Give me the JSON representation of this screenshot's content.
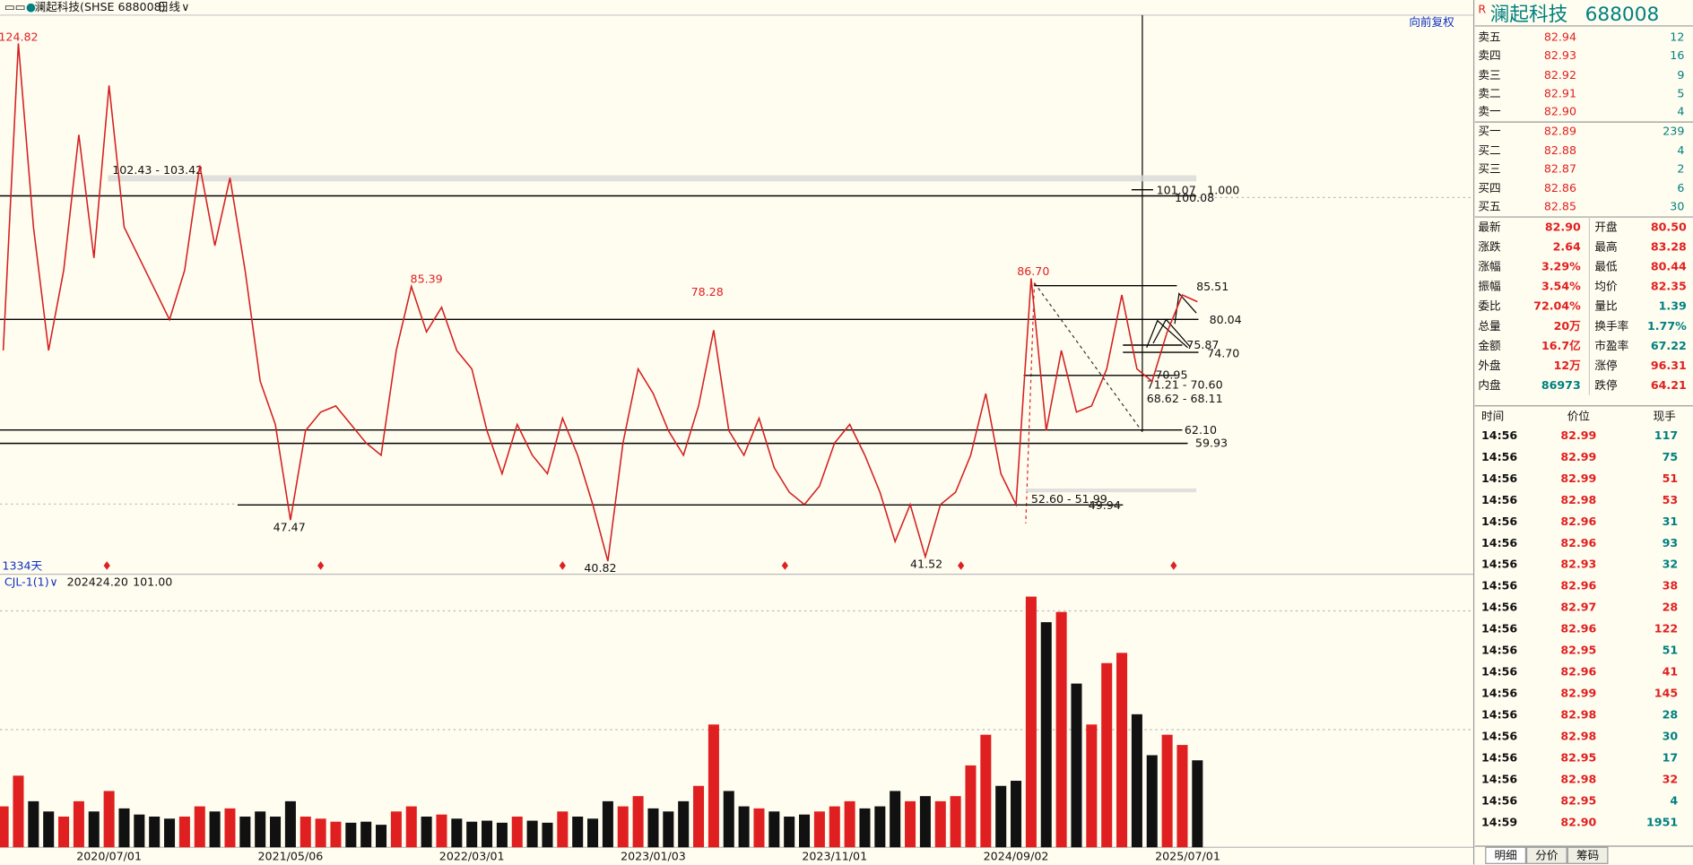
{
  "header": {
    "title": "澜起科技(SHSE 688008)",
    "period": "日线",
    "adjust": "向前复权",
    "days": "1334天"
  },
  "chart_data": [
    {
      "type": "line",
      "color": "#d42020",
      "ylim": [
        38.7,
        129.4
      ],
      "categories": [
        null,
        null,
        null,
        null,
        null,
        null,
        null,
        "2020/07/01",
        null,
        null,
        null,
        null,
        null,
        null,
        null,
        null,
        null,
        null,
        null,
        "2021/05/06",
        null,
        null,
        null,
        null,
        null,
        null,
        null,
        null,
        null,
        null,
        null,
        "2022/03/01",
        null,
        null,
        null,
        null,
        null,
        null,
        null,
        null,
        null,
        null,
        null,
        "2023/01/03",
        null,
        null,
        null,
        null,
        null,
        null,
        null,
        null,
        null,
        null,
        null,
        "2023/11/01",
        null,
        null,
        null,
        null,
        null,
        null,
        null,
        null,
        null,
        null,
        null,
        "2024/09/02",
        null,
        null,
        null,
        null,
        null,
        null,
        null,
        null,
        null,
        null,
        null,
        "2025/07/01"
      ],
      "values": [
        75,
        124.82,
        95,
        75,
        88,
        110,
        90,
        118,
        95,
        90,
        85,
        80,
        88,
        105,
        92,
        103,
        88,
        70,
        63,
        47.47,
        62,
        65,
        66,
        63,
        60,
        58,
        75,
        85.39,
        78,
        82,
        75,
        72,
        62,
        55,
        63,
        58,
        55,
        64,
        58,
        50,
        40.82,
        60,
        72,
        68,
        62,
        58,
        66,
        78.28,
        62,
        58,
        64,
        56,
        52,
        50,
        53,
        60,
        63,
        58,
        52,
        44,
        50,
        41.52,
        50,
        52,
        58,
        68,
        55,
        50,
        86.7,
        62,
        75,
        65,
        66,
        72,
        84,
        72,
        70,
        78,
        84,
        82.9
      ],
      "peaks": [
        124.82,
        85.39,
        78.28,
        {
          "value": 86.7,
          "label": "86.70"
        }
      ],
      "troughs": [
        47.47,
        40.82,
        41.52
      ],
      "zones": [
        {
          "low": 102.43,
          "high": 103.42,
          "label": "102.43 - 103.42"
        },
        {
          "low": 51.99,
          "high": 52.6,
          "label": "52.60 - 51.99"
        },
        {
          "low": 70.6,
          "high": 71.21,
          "label": "71.21 - 70.60"
        },
        {
          "low": 68.11,
          "high": 68.62,
          "label": "68.62 - 68.11"
        }
      ],
      "levels": [
        100.08,
        80.04,
        62.1,
        59.93,
        49.94,
        85.51,
        75.87,
        74.7,
        70.95,
        101.07
      ],
      "level_labels": [
        "100.08",
        "80.04",
        "62.10",
        "59.93",
        "49.94",
        "85.51",
        "75.87",
        "74.70",
        "70.95",
        "101.07"
      ],
      "ratio": {
        "value": 1,
        "label": "1.000"
      }
    },
    {
      "type": "bar",
      "name": "CJL-1(1)",
      "ylim": [
        0,
        250
      ],
      "colors": [
        "#e02020",
        "#111111"
      ],
      "readout": [
        {
          "value": 202424.2,
          "label": "202424.20"
        },
        {
          "value": 101,
          "label": "101.00"
        }
      ],
      "values": [
        40,
        70,
        45,
        35,
        30,
        45,
        35,
        55,
        38,
        32,
        30,
        28,
        30,
        40,
        35,
        38,
        30,
        35,
        30,
        45,
        30,
        28,
        25,
        24,
        25,
        22,
        35,
        40,
        30,
        32,
        28,
        25,
        26,
        24,
        30,
        26,
        24,
        35,
        30,
        28,
        45,
        40,
        50,
        38,
        35,
        45,
        60,
        120,
        55,
        40,
        38,
        35,
        30,
        32,
        35,
        40,
        45,
        38,
        40,
        55,
        45,
        50,
        45,
        50,
        80,
        110,
        60,
        65,
        245,
        220,
        230,
        160,
        120,
        180,
        190,
        130,
        90,
        110,
        100,
        85
      ]
    }
  ],
  "quote": {
    "flag": "R",
    "name": "澜起科技",
    "code": "688008",
    "book": [
      [
        "卖五",
        "82.94",
        "12"
      ],
      [
        "卖四",
        "82.93",
        "16"
      ],
      [
        "卖三",
        "82.92",
        "9"
      ],
      [
        "卖二",
        "82.91",
        "5"
      ],
      [
        "卖一",
        "82.90",
        "4"
      ],
      [
        "买一",
        "82.89",
        "239"
      ],
      [
        "买二",
        "82.88",
        "4"
      ],
      [
        "买三",
        "82.87",
        "2"
      ],
      [
        "买四",
        "82.86",
        "6"
      ],
      [
        "买五",
        "82.85",
        "30"
      ]
    ],
    "stats": [
      [
        "最新",
        "82.90",
        "开盘",
        "80.50"
      ],
      [
        "涨跌",
        "2.64",
        "最高",
        "83.28"
      ],
      [
        "涨幅",
        "3.29%",
        "最低",
        "80.44"
      ],
      [
        "振幅",
        "3.54%",
        "均价",
        "82.35"
      ],
      [
        "委比",
        "72.04%",
        "量比",
        "1.39"
      ],
      [
        "总量",
        "20万",
        "换手率",
        "1.77%"
      ],
      [
        "金额",
        "16.7亿",
        "市盈率",
        "67.22"
      ],
      [
        "外盘",
        "12万",
        "涨停",
        "96.31"
      ],
      [
        "内盘",
        "86973",
        "跌停",
        "64.21"
      ]
    ],
    "trade_head": [
      "时间",
      "价位",
      "现手"
    ],
    "trades": [
      [
        "14:56",
        "82.99",
        "117"
      ],
      [
        "14:56",
        "82.99",
        "75"
      ],
      [
        "14:56",
        "82.99",
        "51"
      ],
      [
        "14:56",
        "82.98",
        "53"
      ],
      [
        "14:56",
        "82.96",
        "31"
      ],
      [
        "14:56",
        "82.96",
        "93"
      ],
      [
        "14:56",
        "82.93",
        "32"
      ],
      [
        "14:56",
        "82.96",
        "38"
      ],
      [
        "14:56",
        "82.97",
        "28"
      ],
      [
        "14:56",
        "82.96",
        "122"
      ],
      [
        "14:56",
        "82.95",
        "51"
      ],
      [
        "14:56",
        "82.96",
        "41"
      ],
      [
        "14:56",
        "82.99",
        "145"
      ],
      [
        "14:56",
        "82.98",
        "28"
      ],
      [
        "14:56",
        "82.98",
        "30"
      ],
      [
        "14:56",
        "82.95",
        "17"
      ],
      [
        "14:56",
        "82.98",
        "32"
      ],
      [
        "14:56",
        "82.95",
        "4"
      ],
      [
        "14:59",
        "82.90",
        "1951"
      ]
    ],
    "trade_colors": [
      "#008080",
      "#008080",
      "#e02020",
      "#e02020",
      "#008080",
      "#008080",
      "#008080",
      "#e02020",
      "#e02020",
      "#e02020",
      "#008080",
      "#e02020",
      "#e02020",
      "#008080",
      "#008080",
      "#008080",
      "#e02020",
      "#008080",
      "#008080"
    ],
    "tabs": [
      "明细",
      "分价",
      "筹码"
    ]
  }
}
